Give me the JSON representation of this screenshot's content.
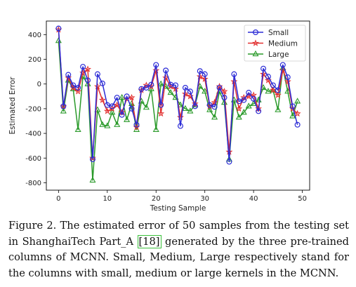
{
  "caption": {
    "part1": "Figure 2. The estimated error of 50 samples from the testing set in ShanghaiTech Part_A ",
    "citation": "[18]",
    "part2": " generated by the three pre-trained columns of MCNN. Small, Medium, Large respectively stand for the columns with small, medium or large kernels in the MCNN."
  },
  "chart_data": {
    "type": "line",
    "title": "",
    "xlabel": "Testing Sample",
    "ylabel": "Estimated Error",
    "xlim": [
      -2.5,
      51.5
    ],
    "ylim": [
      -860,
      510
    ],
    "xticks": [
      0,
      10,
      20,
      30,
      40,
      50
    ],
    "yticks": [
      -800,
      -600,
      -400,
      -200,
      0,
      200,
      400
    ],
    "grid": false,
    "legend_position": "top-right",
    "x": [
      0,
      1,
      2,
      3,
      4,
      5,
      6,
      7,
      8,
      9,
      10,
      11,
      12,
      13,
      14,
      15,
      16,
      17,
      18,
      19,
      20,
      21,
      22,
      23,
      24,
      25,
      26,
      27,
      28,
      29,
      30,
      31,
      32,
      33,
      34,
      35,
      36,
      37,
      38,
      39,
      40,
      41,
      42,
      43,
      44,
      45,
      46,
      47,
      48,
      49
    ],
    "series": [
      {
        "name": "Small",
        "color": "#2b2bd6",
        "marker": "circle",
        "values": [
          450,
          -180,
          75,
          -10,
          -30,
          140,
          30,
          -610,
          80,
          5,
          -170,
          -180,
          -110,
          -250,
          -100,
          -200,
          -330,
          -40,
          -30,
          -5,
          155,
          -170,
          110,
          -5,
          -10,
          -340,
          -30,
          -60,
          -180,
          105,
          80,
          -170,
          -185,
          -30,
          -110,
          -630,
          80,
          -140,
          -130,
          -70,
          -120,
          -220,
          125,
          60,
          -10,
          -50,
          155,
          55,
          -180,
          -330
        ]
      },
      {
        "name": "Medium",
        "color": "#e23030",
        "marker": "star",
        "values": [
          440,
          -180,
          50,
          -30,
          -60,
          90,
          120,
          -600,
          -20,
          -130,
          -220,
          -200,
          -170,
          -230,
          -120,
          -110,
          -350,
          -50,
          -10,
          -20,
          110,
          -240,
          50,
          -20,
          -40,
          -270,
          -80,
          -100,
          -160,
          60,
          40,
          -180,
          -150,
          -20,
          -60,
          -550,
          20,
          -200,
          -110,
          -100,
          -90,
          -200,
          80,
          30,
          -50,
          -90,
          110,
          20,
          -200,
          -240
        ]
      },
      {
        "name": "Large",
        "color": "#2a9a2a",
        "marker": "triangle",
        "values": [
          350,
          -220,
          30,
          -40,
          -370,
          60,
          0,
          -780,
          -210,
          -330,
          -340,
          -230,
          -330,
          -110,
          -290,
          -160,
          -370,
          -140,
          -190,
          -40,
          -370,
          0,
          -20,
          -70,
          -110,
          -170,
          -200,
          -220,
          -170,
          -20,
          -60,
          -210,
          -270,
          -60,
          -150,
          -610,
          -130,
          -270,
          -230,
          -180,
          -160,
          -130,
          -30,
          -60,
          -50,
          -210,
          130,
          -60,
          -260,
          -140
        ]
      }
    ]
  }
}
